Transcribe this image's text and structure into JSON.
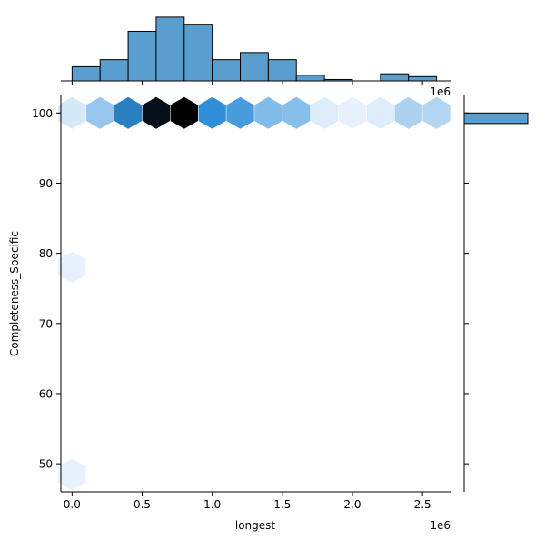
{
  "chart_data": {
    "type": "jointplot-hexbin",
    "xlabel": "longest",
    "ylabel": "Completeness_Specific",
    "x_offset_label": "1e6",
    "x_ticks": [
      0.0,
      0.5,
      1.0,
      1.5,
      2.0,
      2.5
    ],
    "x_tick_labels": [
      "0.0",
      "0.5",
      "1.0",
      "1.5",
      "2.0",
      "2.5"
    ],
    "y_ticks": [
      50,
      60,
      70,
      80,
      90,
      100
    ],
    "y_tick_labels": [
      "50",
      "60",
      "70",
      "80",
      "90",
      "100"
    ],
    "xlim": [
      -0.08,
      2.7
    ],
    "ylim": [
      46.0,
      102.5
    ],
    "hexbins": [
      {
        "x": 0.0,
        "y": 100,
        "density": 0.08
      },
      {
        "x": 0.2,
        "y": 100,
        "density": 0.26
      },
      {
        "x": 0.4,
        "y": 100,
        "density": 0.6
      },
      {
        "x": 0.6,
        "y": 100,
        "density": 0.95
      },
      {
        "x": 0.8,
        "y": 100,
        "density": 1.0
      },
      {
        "x": 1.0,
        "y": 100,
        "density": 0.55
      },
      {
        "x": 1.2,
        "y": 100,
        "density": 0.48
      },
      {
        "x": 1.4,
        "y": 100,
        "density": 0.32
      },
      {
        "x": 1.6,
        "y": 100,
        "density": 0.3
      },
      {
        "x": 1.8,
        "y": 100,
        "density": 0.06
      },
      {
        "x": 2.0,
        "y": 100,
        "density": 0.03
      },
      {
        "x": 2.2,
        "y": 100,
        "density": 0.06
      },
      {
        "x": 2.4,
        "y": 100,
        "density": 0.2
      },
      {
        "x": 2.6,
        "y": 100,
        "density": 0.18
      },
      {
        "x": 0.0,
        "y": 78,
        "density": 0.03
      },
      {
        "x": 0.0,
        "y": 48.5,
        "density": 0.03
      }
    ],
    "x_marginal_hist": {
      "bin_edges": [
        0.0,
        0.2,
        0.4,
        0.6,
        0.8,
        1.0,
        1.2,
        1.4,
        1.6,
        1.8,
        2.0,
        2.2,
        2.4,
        2.6
      ],
      "counts": [
        2,
        3,
        7,
        9,
        8,
        3,
        4,
        3,
        0.8,
        0.2,
        0,
        1,
        0.6
      ],
      "count_max": 9.5
    },
    "y_marginal_hist": {
      "bins": [
        {
          "y_low": 98.5,
          "y_high": 100,
          "count": 56
        }
      ],
      "count_max": 56
    },
    "colors": {
      "hist_fill": "#5a9ecf",
      "hist_edge": "#000000",
      "hex_low": "#f2f8ff",
      "hex_mid": "#2f8fd8",
      "hex_high": "#000000"
    }
  }
}
